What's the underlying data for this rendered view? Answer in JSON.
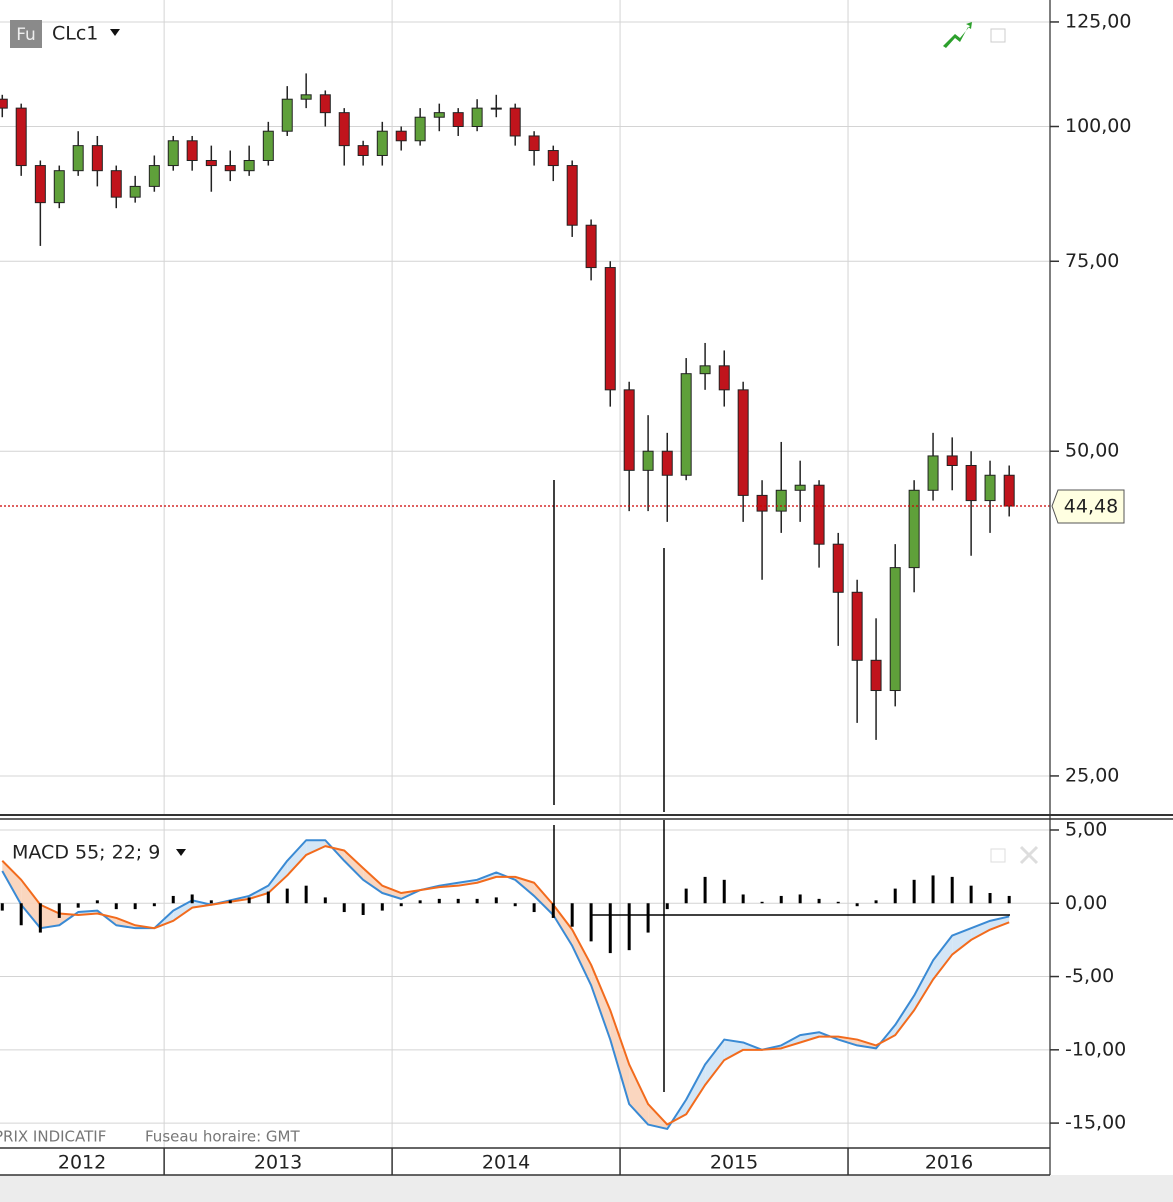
{
  "chart_data": [
    {
      "type": "candlestick",
      "title": "CLc1",
      "icon_label": "Fu",
      "x": [
        2012.29,
        2012.373,
        2012.457,
        2012.54,
        2012.623,
        2012.707,
        2012.79,
        2012.873,
        2012.957,
        2013.04,
        2013.123,
        2013.207,
        2013.29,
        2013.373,
        2013.457,
        2013.54,
        2013.623,
        2013.707,
        2013.79,
        2013.873,
        2013.957,
        2014.04,
        2014.123,
        2014.207,
        2014.29,
        2014.373,
        2014.457,
        2014.54,
        2014.623,
        2014.707,
        2014.79,
        2014.873,
        2014.957,
        2015.04,
        2015.123,
        2015.207,
        2015.29,
        2015.373,
        2015.457,
        2015.54,
        2015.623,
        2015.707,
        2015.79,
        2015.873,
        2015.957,
        2016.04,
        2016.123,
        2016.207,
        2016.29,
        2016.373,
        2016.457,
        2016.54,
        2016.623,
        2016.707
      ],
      "open": [
        106,
        104,
        92,
        85,
        91,
        96,
        91,
        86,
        88,
        92,
        97,
        93,
        92,
        91,
        93,
        99,
        106,
        107,
        103,
        96,
        94,
        99,
        97,
        102,
        103,
        100,
        104,
        104,
        98,
        95,
        92,
        81,
        74,
        57,
        48,
        50,
        47.5,
        59,
        60,
        57,
        45.5,
        44,
        46,
        46.5,
        41,
        37,
        32,
        30,
        39,
        46,
        49.5,
        48.5,
        45,
        47.5
      ],
      "high": [
        107,
        105,
        93,
        92,
        99,
        98,
        92,
        90,
        94,
        98,
        98,
        96,
        95,
        96,
        101,
        109,
        112,
        108,
        104,
        97,
        101,
        100,
        104,
        105,
        104,
        106,
        107,
        105,
        99,
        96,
        93,
        82,
        75,
        58,
        54,
        52,
        61,
        63,
        62,
        58,
        47,
        51,
        49,
        47,
        42,
        38,
        35,
        41,
        47,
        52,
        51.5,
        50,
        49,
        48.5
      ],
      "low": [
        102,
        90,
        77.5,
        84,
        90,
        88,
        84,
        85,
        87,
        91,
        91,
        87,
        89,
        90,
        92,
        98,
        104,
        100,
        92,
        92,
        92,
        95,
        96,
        99,
        98,
        99,
        102,
        96,
        92,
        89,
        79,
        72,
        55,
        44,
        44,
        43,
        47,
        57,
        55,
        43,
        38,
        42,
        43,
        39,
        33,
        28,
        27,
        29,
        37,
        45,
        46,
        40,
        42,
        43.5
      ],
      "close": [
        104,
        92,
        85,
        91,
        96,
        91,
        86,
        88,
        92,
        97,
        93,
        92,
        91,
        93,
        99,
        106,
        107,
        103,
        96,
        94,
        99,
        97,
        102,
        103,
        100,
        104,
        104,
        98,
        95,
        92,
        81,
        74,
        57,
        48,
        50,
        47.5,
        59,
        60,
        57,
        45.5,
        44,
        46,
        46.5,
        41,
        37,
        32,
        30,
        39,
        46,
        49.5,
        48.5,
        45,
        47.5,
        44.48
      ],
      "up_color": "#5fa03a",
      "down_color": "#c0141c",
      "log_scale": true,
      "ylim": [
        23,
        131
      ],
      "yticks": [
        {
          "value": 25,
          "label": "25,00"
        },
        {
          "value": 50,
          "label": "50,00"
        },
        {
          "value": 75,
          "label": "75,00"
        },
        {
          "value": 100,
          "label": "100,00"
        },
        {
          "value": 125,
          "label": "125,00"
        }
      ],
      "last_price": {
        "value": 44.48,
        "label": "44,48"
      },
      "grid": true
    },
    {
      "type": "line",
      "title": "MACD 55; 22; 9",
      "series": [
        {
          "color": "#3a8ad4",
          "values": [
            2.2,
            -0.1,
            -1.7,
            -1.5,
            -0.6,
            -0.5,
            -1.5,
            -1.7,
            -1.7,
            -0.5,
            0.2,
            -0.1,
            0.2,
            0.5,
            1.2,
            2.9,
            4.3,
            4.3,
            2.9,
            1.6,
            0.7,
            0.3,
            0.9,
            1.2,
            1.4,
            1.6,
            2.1,
            1.6,
            0.5,
            -0.8,
            -2.9,
            -5.6,
            -9.3,
            -13.7,
            -15.1,
            -15.4,
            -13.4,
            -11,
            -9.3,
            -9.5,
            -10,
            -9.7,
            -9,
            -8.8,
            -9.3,
            -9.7,
            -9.9,
            -8.3,
            -6.3,
            -3.9,
            -2.2,
            -1.7,
            -1.2,
            -0.9
          ]
        },
        {
          "color": "#f26b1d",
          "values": [
            2.9,
            1.6,
            -0.1,
            -0.7,
            -0.8,
            -0.7,
            -1,
            -1.5,
            -1.7,
            -1.2,
            -0.3,
            -0.1,
            0.1,
            0.3,
            0.7,
            1.9,
            3.3,
            3.9,
            3.6,
            2.4,
            1.2,
            0.7,
            0.9,
            1.1,
            1.2,
            1.4,
            1.8,
            1.8,
            1.4,
            -0.1,
            -1.8,
            -4.2,
            -7.3,
            -11,
            -13.7,
            -15.1,
            -14.4,
            -12.4,
            -10.7,
            -10,
            -10,
            -9.9,
            -9.5,
            -9.1,
            -9.1,
            -9.3,
            -9.7,
            -9,
            -7.3,
            -5.2,
            -3.5,
            -2.5,
            -1.8,
            -1.3
          ]
        },
        {
          "color": "#000000",
          "kind": "bar",
          "values": [
            -0.5,
            -1.5,
            -2,
            -1,
            -0.3,
            0.2,
            -0.4,
            -0.4,
            -0.2,
            0.5,
            0.6,
            0.2,
            0.2,
            0.4,
            0.8,
            1,
            1.2,
            0.4,
            -0.6,
            -0.8,
            -0.5,
            -0.2,
            0.2,
            0.3,
            0.3,
            0.3,
            0.4,
            -0.2,
            -0.6,
            -1,
            -1.6,
            -2.6,
            -3.4,
            -3.2,
            -2,
            -0.4,
            1,
            1.8,
            1.6,
            0.6,
            0.1,
            0.5,
            0.6,
            0.3,
            0.1,
            -0.2,
            0.2,
            1,
            1.6,
            1.9,
            1.8,
            1.2,
            0.7,
            0.5
          ]
        }
      ],
      "fill_colors": [
        "#cfe3f5",
        "#f9d2b8"
      ],
      "ylim": [
        -16.7,
        5.75
      ],
      "yticks": [
        {
          "value": -15,
          "label": "-15,00"
        },
        {
          "value": -10,
          "label": "-10,00"
        },
        {
          "value": -5,
          "label": "-5,00"
        },
        {
          "value": 0,
          "label": "0,00"
        },
        {
          "value": 5,
          "label": "5,00"
        }
      ],
      "xlim": [
        2012.28,
        2016.886
      ],
      "xticks": [
        2012,
        2013,
        2014,
        2015,
        2016
      ],
      "grid": true
    }
  ],
  "footer": {
    "price_note": "PRIX INDICATIF",
    "timezone": "Fuseau horaire: GMT"
  }
}
